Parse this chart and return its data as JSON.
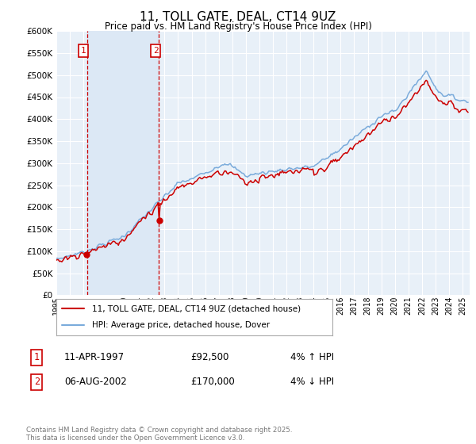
{
  "title": "11, TOLL GATE, DEAL, CT14 9UZ",
  "subtitle": "Price paid vs. HM Land Registry's House Price Index (HPI)",
  "ylim": [
    0,
    600000
  ],
  "yticks": [
    0,
    50000,
    100000,
    150000,
    200000,
    250000,
    300000,
    350000,
    400000,
    450000,
    500000,
    550000,
    600000
  ],
  "xlim_start": 1995.0,
  "xlim_end": 2025.5,
  "xticks": [
    1995,
    1996,
    1997,
    1998,
    1999,
    2000,
    2001,
    2002,
    2003,
    2004,
    2005,
    2006,
    2007,
    2008,
    2009,
    2010,
    2011,
    2012,
    2013,
    2014,
    2015,
    2016,
    2017,
    2018,
    2019,
    2020,
    2021,
    2022,
    2023,
    2024,
    2025
  ],
  "sale1_date": 1997.27,
  "sale1_price": 92500,
  "sale2_date": 2002.59,
  "sale2_price": 170000,
  "legend_line1": "11, TOLL GATE, DEAL, CT14 9UZ (detached house)",
  "legend_line2": "HPI: Average price, detached house, Dover",
  "annotation1_num": "1",
  "annotation1_date": "11-APR-1997",
  "annotation1_price": "£92,500",
  "annotation1_hpi": "4% ↑ HPI",
  "annotation2_num": "2",
  "annotation2_date": "06-AUG-2002",
  "annotation2_price": "£170,000",
  "annotation2_hpi": "4% ↓ HPI",
  "footer": "Contains HM Land Registry data © Crown copyright and database right 2025.\nThis data is licensed under the Open Government Licence v3.0.",
  "line_color_red": "#cc0000",
  "line_color_blue": "#7aabdb",
  "shade_color": "#dce8f5",
  "bg_color": "#e8f0f8",
  "grid_color": "#ffffff"
}
